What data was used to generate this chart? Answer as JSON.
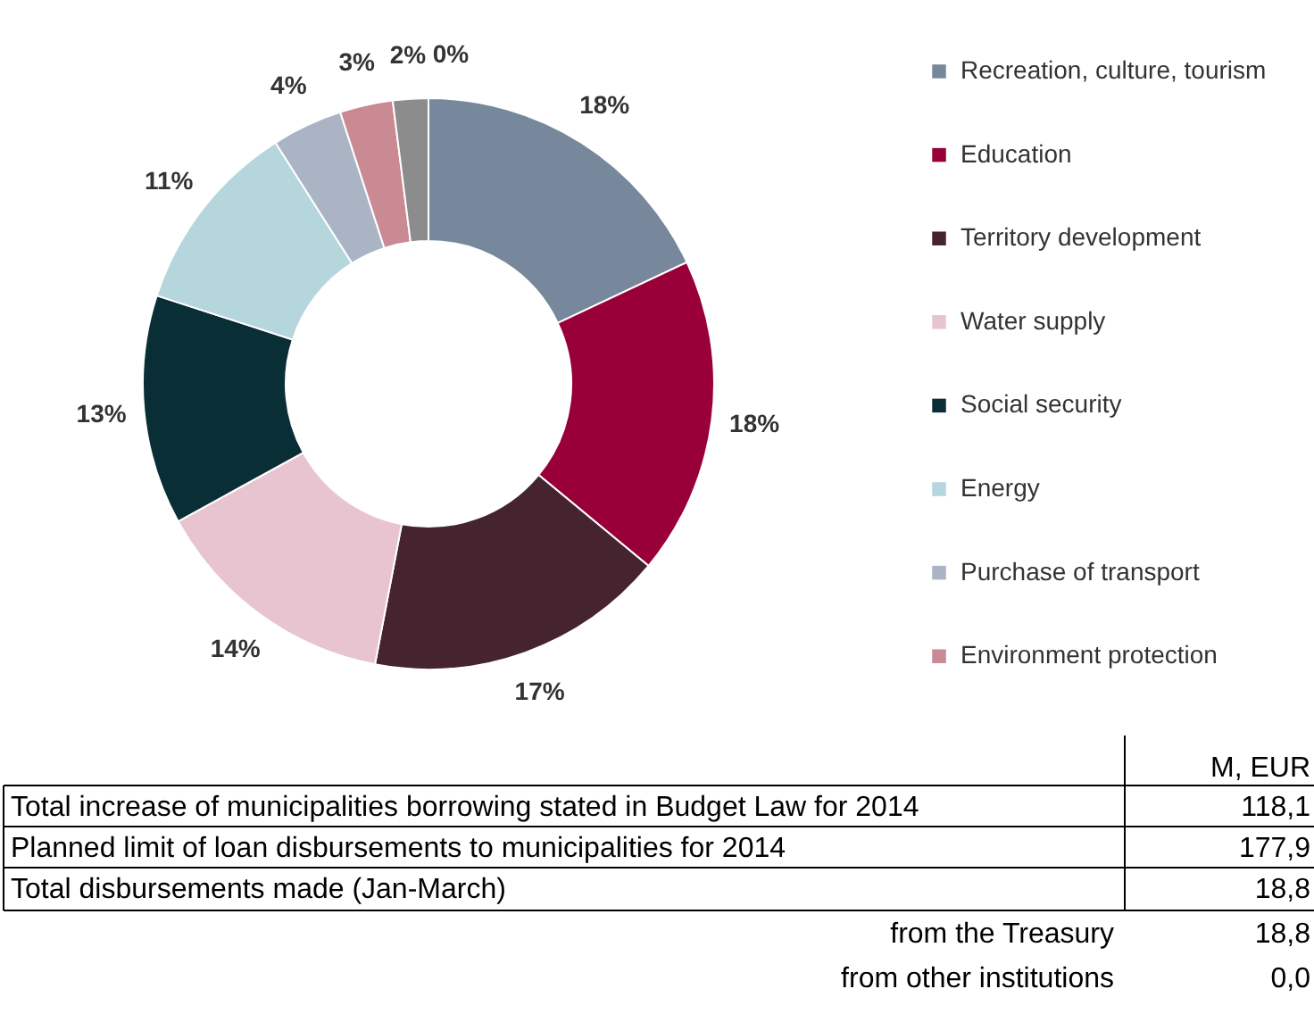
{
  "chart_data": {
    "type": "donut",
    "categories": [
      "Recreation, culture, tourism",
      "Education",
      "Territory development",
      "Water supply",
      "Social security",
      "Energy",
      "Purchase of transport",
      "Environment protection",
      null,
      null
    ],
    "values": [
      18,
      18,
      17,
      14,
      13,
      11,
      4,
      3,
      2,
      0
    ],
    "colors": [
      "#77889c",
      "#990039",
      "#45232f",
      "#e8c4d0",
      "#0a2e36",
      "#b4d6dc",
      "#aab4c4",
      "#c98a94",
      "#8c8c8c",
      "#a8a8a8"
    ],
    "value_labels": [
      "18%",
      "18%",
      "17%",
      "14%",
      "13%",
      "11%",
      "4%",
      "3%",
      "2%",
      "0%"
    ],
    "legend": "right",
    "annotations": [
      "M, EUR",
      "Total increase of municipalities borrowing stated in Budget Law for 2014",
      "118,1",
      "Planned limit of loan disbursements to municipalities for 2014",
      "177,9",
      "Total disbursements made (Jan-March)",
      "18,8",
      "from the Treasury",
      "18,8",
      "from other institutions",
      "0,0"
    ]
  }
}
